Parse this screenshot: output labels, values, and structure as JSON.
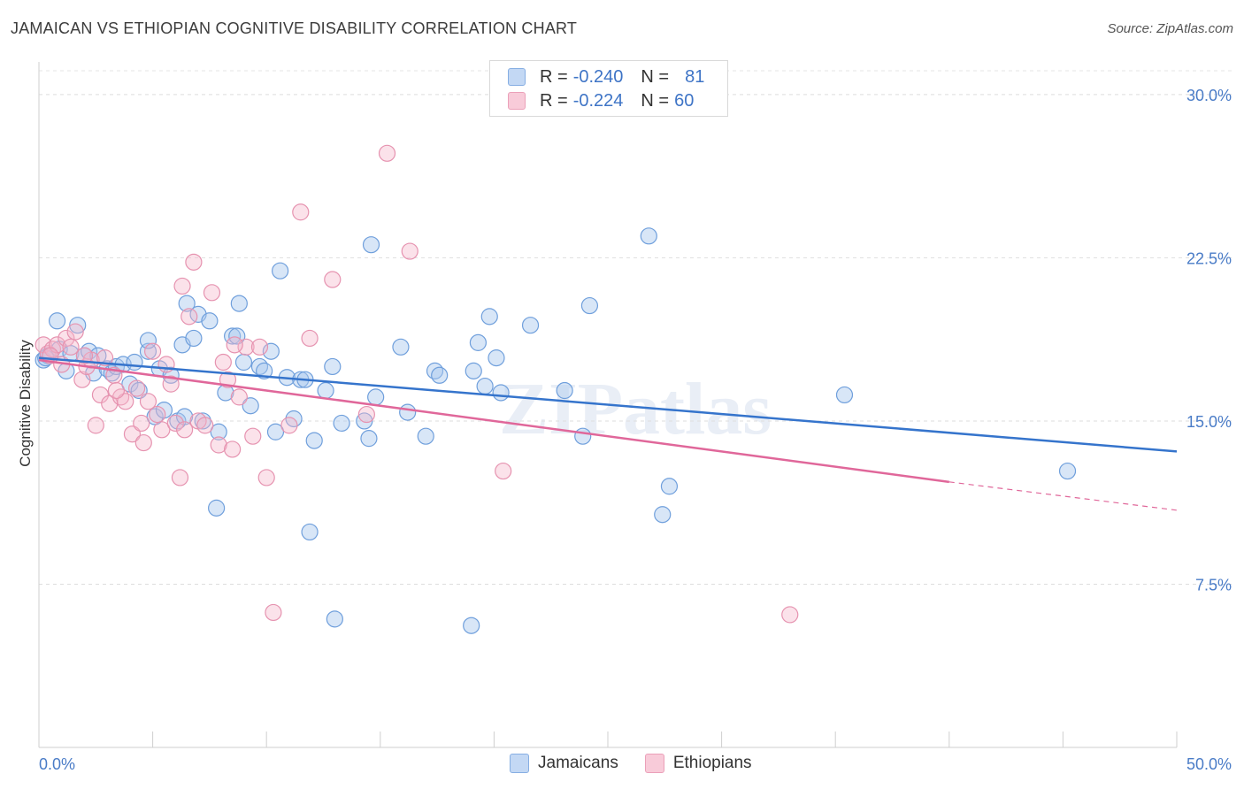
{
  "title": "JAMAICAN VS ETHIOPIAN COGNITIVE DISABILITY CORRELATION CHART",
  "source": "Source: ZipAtlas.com",
  "watermark": "ZIPatlas",
  "legend": {
    "rows": [
      {
        "r_label": "R =",
        "r_value": "-0.240",
        "n_label": "N =",
        "n_value": "81"
      },
      {
        "r_label": "R =",
        "r_value": "-0.224",
        "n_label": "N =",
        "n_value": "60"
      }
    ]
  },
  "chart_data": {
    "type": "scatter",
    "title": "JAMAICAN VS ETHIOPIAN COGNITIVE DISABILITY CORRELATION CHART",
    "xlabel": "",
    "ylabel": "Cognitive Disability",
    "xlim": [
      0,
      50
    ],
    "ylim": [
      0,
      31.5
    ],
    "x_tick_labels": [
      "0.0%",
      "50.0%"
    ],
    "y_ticks": [
      7.5,
      15.0,
      22.5,
      30.0
    ],
    "y_tick_labels": [
      "7.5%",
      "15.0%",
      "22.5%",
      "30.0%"
    ],
    "grid": true,
    "legend_position": "top-center",
    "colors": {
      "Jamaicans": "#a9c7ee",
      "Ethiopians": "#f4b6ca",
      "Jamaicans_line": "#3574cc",
      "Ethiopians_line": "#e0679a"
    },
    "series": [
      {
        "name": "Jamaicans",
        "trend": {
          "x0": 0,
          "y0": 17.9,
          "x1": 50,
          "y1": 13.6
        },
        "points": [
          [
            0.2,
            17.8
          ],
          [
            0.4,
            18.0
          ],
          [
            0.8,
            19.6
          ],
          [
            0.9,
            18.3
          ],
          [
            1.2,
            17.3
          ],
          [
            1.4,
            18.1
          ],
          [
            1.7,
            19.4
          ],
          [
            2.0,
            18.0
          ],
          [
            2.2,
            18.2
          ],
          [
            2.4,
            17.2
          ],
          [
            2.6,
            18.0
          ],
          [
            3.0,
            17.4
          ],
          [
            3.2,
            17.2
          ],
          [
            3.4,
            17.5
          ],
          [
            3.7,
            17.6
          ],
          [
            4.0,
            16.7
          ],
          [
            4.2,
            17.7
          ],
          [
            4.4,
            16.4
          ],
          [
            4.8,
            18.2
          ],
          [
            4.8,
            18.7
          ],
          [
            5.1,
            15.2
          ],
          [
            5.3,
            17.4
          ],
          [
            5.5,
            15.5
          ],
          [
            5.8,
            17.1
          ],
          [
            6.1,
            15.0
          ],
          [
            6.3,
            18.5
          ],
          [
            6.4,
            15.2
          ],
          [
            6.5,
            20.4
          ],
          [
            6.8,
            18.8
          ],
          [
            7.0,
            19.9
          ],
          [
            7.2,
            15.0
          ],
          [
            7.5,
            19.6
          ],
          [
            7.8,
            11.0
          ],
          [
            7.9,
            14.5
          ],
          [
            8.2,
            16.3
          ],
          [
            8.5,
            18.9
          ],
          [
            8.7,
            18.9
          ],
          [
            8.8,
            20.4
          ],
          [
            9.0,
            17.7
          ],
          [
            9.3,
            15.7
          ],
          [
            9.7,
            17.5
          ],
          [
            9.9,
            17.3
          ],
          [
            10.2,
            18.2
          ],
          [
            10.4,
            14.5
          ],
          [
            10.6,
            21.9
          ],
          [
            10.9,
            17.0
          ],
          [
            11.2,
            15.1
          ],
          [
            11.5,
            16.9
          ],
          [
            11.7,
            16.9
          ],
          [
            11.9,
            9.9
          ],
          [
            12.1,
            14.1
          ],
          [
            12.6,
            16.4
          ],
          [
            12.9,
            17.5
          ],
          [
            13.0,
            5.9
          ],
          [
            13.3,
            14.9
          ],
          [
            14.3,
            15.0
          ],
          [
            14.5,
            14.2
          ],
          [
            14.6,
            23.1
          ],
          [
            14.8,
            16.1
          ],
          [
            15.9,
            18.4
          ],
          [
            16.2,
            15.4
          ],
          [
            17.0,
            14.3
          ],
          [
            17.4,
            17.3
          ],
          [
            17.6,
            17.1
          ],
          [
            19.1,
            17.3
          ],
          [
            19.3,
            18.6
          ],
          [
            19.6,
            16.6
          ],
          [
            19.8,
            19.8
          ],
          [
            20.1,
            17.9
          ],
          [
            20.3,
            16.3
          ],
          [
            21.6,
            19.4
          ],
          [
            23.1,
            16.4
          ],
          [
            23.9,
            14.3
          ],
          [
            24.2,
            20.3
          ],
          [
            26.8,
            23.5
          ],
          [
            27.4,
            10.7
          ],
          [
            27.7,
            12.0
          ],
          [
            35.4,
            16.2
          ],
          [
            45.2,
            12.7
          ],
          [
            19.0,
            5.6
          ],
          [
            0.3,
            17.9
          ]
        ]
      },
      {
        "name": "Ethiopians",
        "trend": {
          "x0": 0,
          "y0": 17.8,
          "x1": 40,
          "y1": 12.2,
          "dash_x1": 50,
          "dash_y1": 10.9
        },
        "points": [
          [
            0.2,
            18.5
          ],
          [
            0.4,
            18.1
          ],
          [
            0.6,
            18.3
          ],
          [
            0.8,
            18.5
          ],
          [
            1.0,
            17.6
          ],
          [
            1.2,
            18.8
          ],
          [
            1.6,
            19.1
          ],
          [
            1.9,
            16.9
          ],
          [
            2.1,
            17.5
          ],
          [
            2.3,
            17.8
          ],
          [
            2.5,
            14.8
          ],
          [
            2.7,
            16.2
          ],
          [
            2.9,
            17.9
          ],
          [
            3.1,
            15.8
          ],
          [
            3.3,
            17.1
          ],
          [
            3.6,
            16.1
          ],
          [
            3.8,
            15.9
          ],
          [
            4.1,
            14.4
          ],
          [
            4.3,
            16.5
          ],
          [
            4.5,
            14.9
          ],
          [
            4.8,
            15.9
          ],
          [
            5.0,
            18.2
          ],
          [
            5.2,
            15.3
          ],
          [
            5.4,
            14.6
          ],
          [
            5.6,
            17.6
          ],
          [
            5.8,
            16.7
          ],
          [
            6.0,
            14.9
          ],
          [
            6.2,
            12.4
          ],
          [
            6.3,
            21.2
          ],
          [
            6.6,
            19.8
          ],
          [
            6.8,
            22.3
          ],
          [
            7.0,
            15.0
          ],
          [
            7.3,
            14.8
          ],
          [
            7.6,
            20.9
          ],
          [
            7.9,
            13.9
          ],
          [
            8.1,
            17.7
          ],
          [
            8.3,
            16.9
          ],
          [
            8.5,
            13.7
          ],
          [
            8.8,
            16.1
          ],
          [
            9.1,
            18.4
          ],
          [
            9.4,
            14.3
          ],
          [
            9.7,
            18.4
          ],
          [
            10.0,
            12.4
          ],
          [
            10.3,
            6.2
          ],
          [
            11.0,
            14.8
          ],
          [
            11.5,
            24.6
          ],
          [
            11.9,
            18.8
          ],
          [
            12.9,
            21.5
          ],
          [
            14.4,
            15.3
          ],
          [
            15.3,
            27.3
          ],
          [
            16.3,
            22.8
          ],
          [
            20.4,
            12.7
          ],
          [
            0.5,
            18.0
          ],
          [
            1.4,
            18.4
          ],
          [
            2.0,
            18.0
          ],
          [
            3.4,
            16.4
          ],
          [
            4.6,
            14.0
          ],
          [
            6.4,
            14.6
          ],
          [
            8.6,
            18.5
          ],
          [
            33.0,
            6.1
          ]
        ]
      }
    ]
  }
}
